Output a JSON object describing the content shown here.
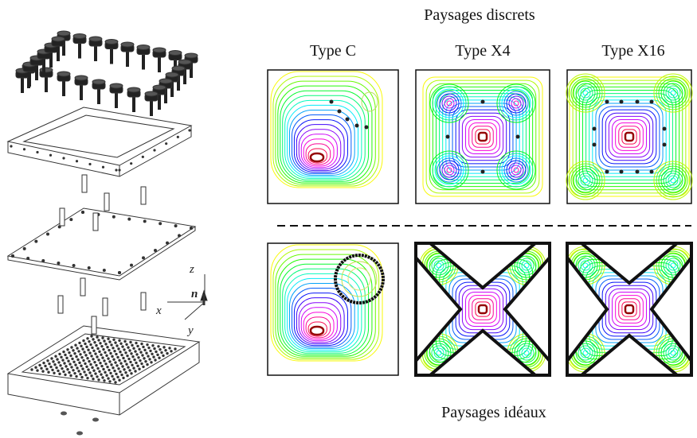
{
  "header": {
    "top_title": "Paysages discrets",
    "bottom_title": "Paysages idéaux"
  },
  "columns": [
    "Type C",
    "Type X4",
    "Type X16"
  ],
  "axes": {
    "z": "z",
    "n": "n",
    "x": "x",
    "y": "y"
  }
}
